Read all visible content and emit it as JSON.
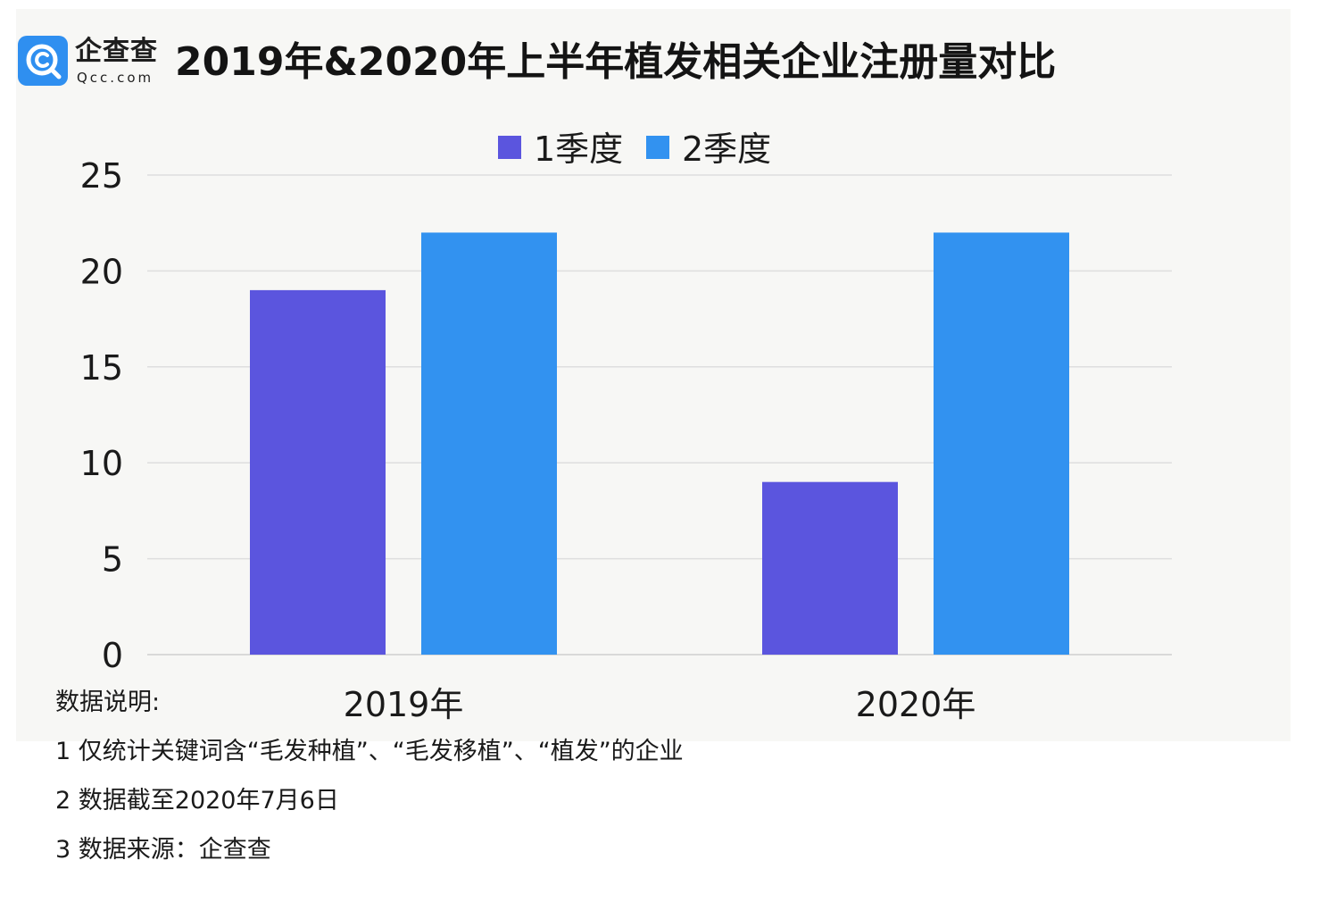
{
  "brand": {
    "name_cn": "企查查",
    "name_en": "Qcc.com",
    "colors": {
      "logo_blue": "#2f8ff0"
    }
  },
  "title": "2019年&2020年上半年植发相关企业注册量对比",
  "notes": {
    "heading": "数据说明:",
    "lines": [
      "1 仅统计关键词含“毛发种植”、“毛发移植”、“植发”的企业",
      "2 数据截至2020年7月6日",
      "3 数据来源：企查查"
    ]
  },
  "chart_data": {
    "type": "bar",
    "title": "2019年&2020年上半年植发相关企业注册量对比",
    "categories": [
      "2019年",
      "2020年"
    ],
    "series": [
      {
        "name": "1季度",
        "values": [
          19,
          9
        ],
        "color": "#5b55de"
      },
      {
        "name": "2季度",
        "values": [
          22,
          22
        ],
        "color": "#3292f0"
      }
    ],
    "ylim": [
      0,
      25
    ],
    "yticks": [
      0,
      5,
      10,
      15,
      20,
      25
    ],
    "grid": true,
    "legend": "top-center",
    "xlabel": "",
    "ylabel": ""
  }
}
